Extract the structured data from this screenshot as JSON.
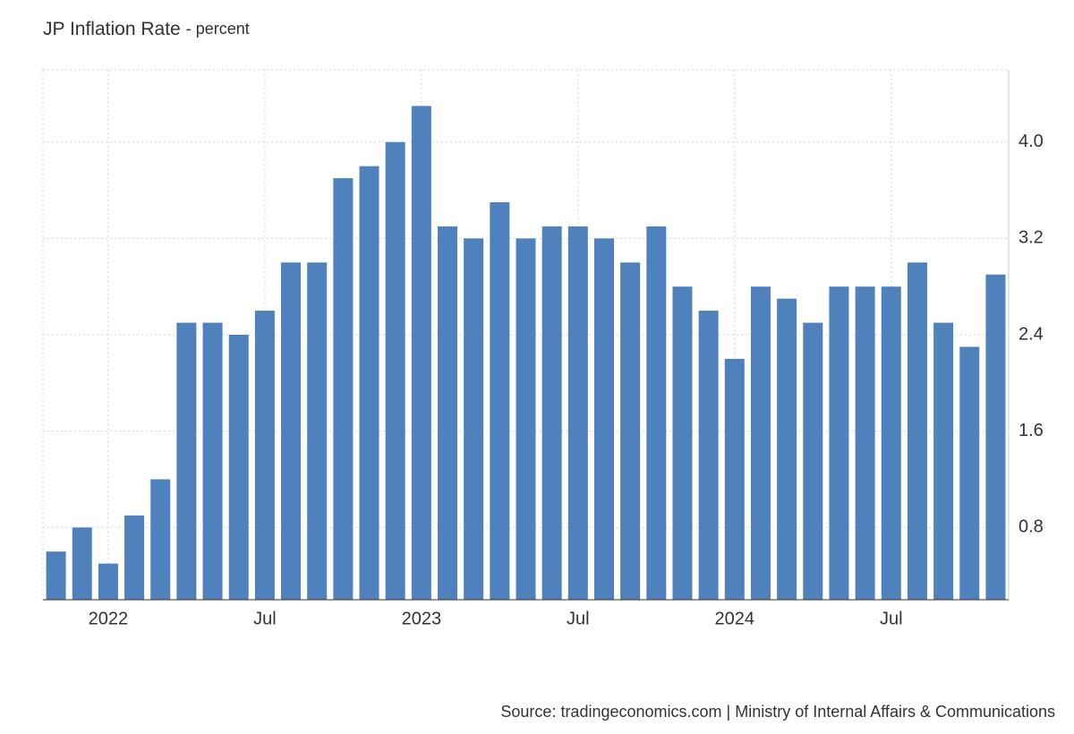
{
  "chart_data": {
    "type": "bar",
    "title": "JP Inflation Rate",
    "subtitle": "- percent",
    "source": "Source: tradingeconomics.com | Ministry of Internal Affairs & Communications",
    "categories": [
      null,
      null,
      "2022",
      null,
      null,
      null,
      null,
      null,
      "Jul",
      null,
      null,
      null,
      null,
      null,
      "2023",
      null,
      null,
      null,
      null,
      null,
      "Jul",
      null,
      null,
      null,
      null,
      null,
      "2024",
      null,
      null,
      null,
      null,
      null,
      "Jul",
      null,
      null,
      null,
      null
    ],
    "values": [
      0.6,
      0.8,
      0.5,
      0.9,
      1.2,
      2.5,
      2.5,
      2.4,
      2.6,
      3.0,
      3.0,
      3.7,
      3.8,
      4.0,
      4.3,
      3.3,
      3.2,
      3.5,
      3.2,
      3.3,
      3.3,
      3.2,
      3.0,
      3.3,
      2.8,
      2.6,
      2.2,
      2.8,
      2.7,
      2.5,
      2.8,
      2.8,
      2.8,
      3.0,
      2.5,
      2.3,
      2.9
    ],
    "color": "#4f81bd",
    "ylim": [
      0.2,
      4.6
    ],
    "yticks": [
      0.8,
      1.6,
      2.4,
      3.2,
      {
        "value": 4,
        "label": "4.0"
      }
    ],
    "grid": true
  }
}
